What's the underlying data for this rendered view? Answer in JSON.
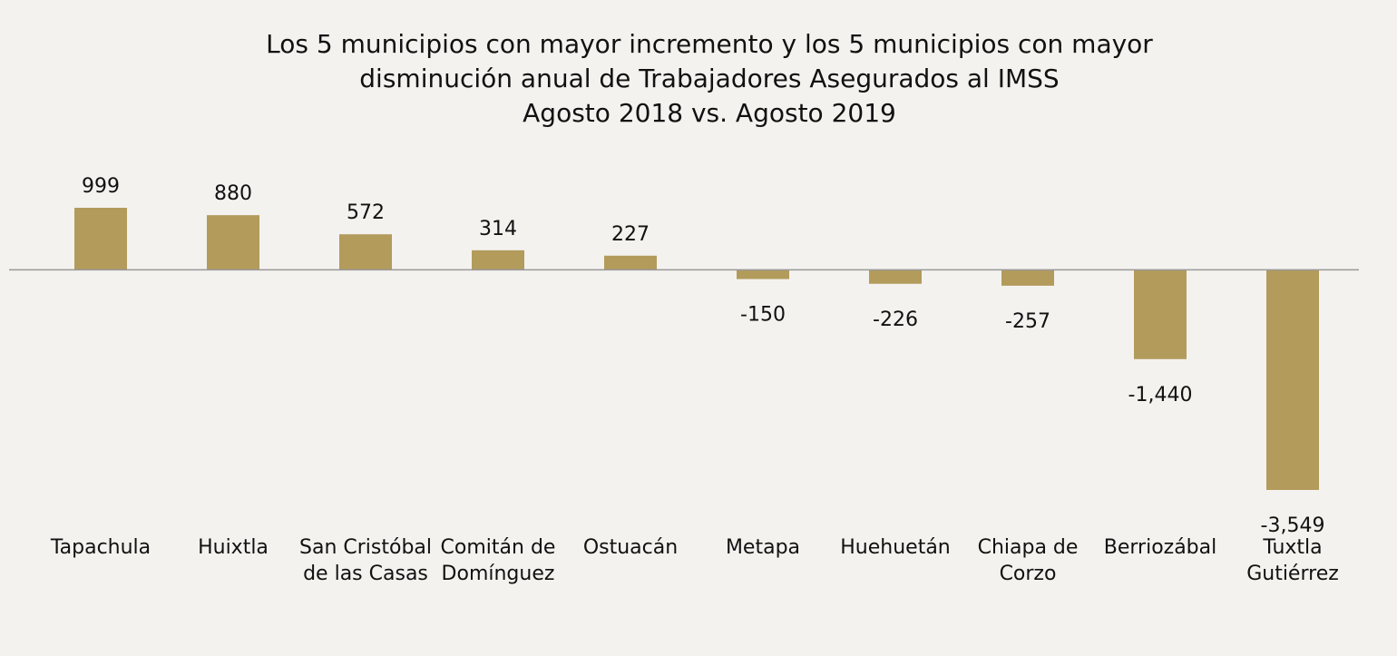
{
  "chart_data": {
    "type": "bar",
    "title": "Los 5 municipios con mayor incremento y los 5 municipios con mayor\ndisminución anual de Trabajadores Asegurados al IMSS\nAgosto 2018 vs. Agosto 2019",
    "categories": [
      "Tapachula",
      "Huixtla",
      "San Cristóbal de las Casas",
      "Comitán de Domínguez",
      "Ostuacán",
      "Metapa",
      "Huehuetán",
      "Chiapa de Corzo",
      "Berriozábal",
      "Tuxtla Gutiérrez"
    ],
    "values": [
      999,
      880,
      572,
      314,
      227,
      -150,
      -226,
      -257,
      -1440,
      -3549
    ],
    "value_labels": [
      "999",
      "880",
      "572",
      "314",
      "227",
      "-150",
      "-226",
      "-257",
      "-1,440",
      "-3,549"
    ],
    "color": "#b39b5c"
  }
}
